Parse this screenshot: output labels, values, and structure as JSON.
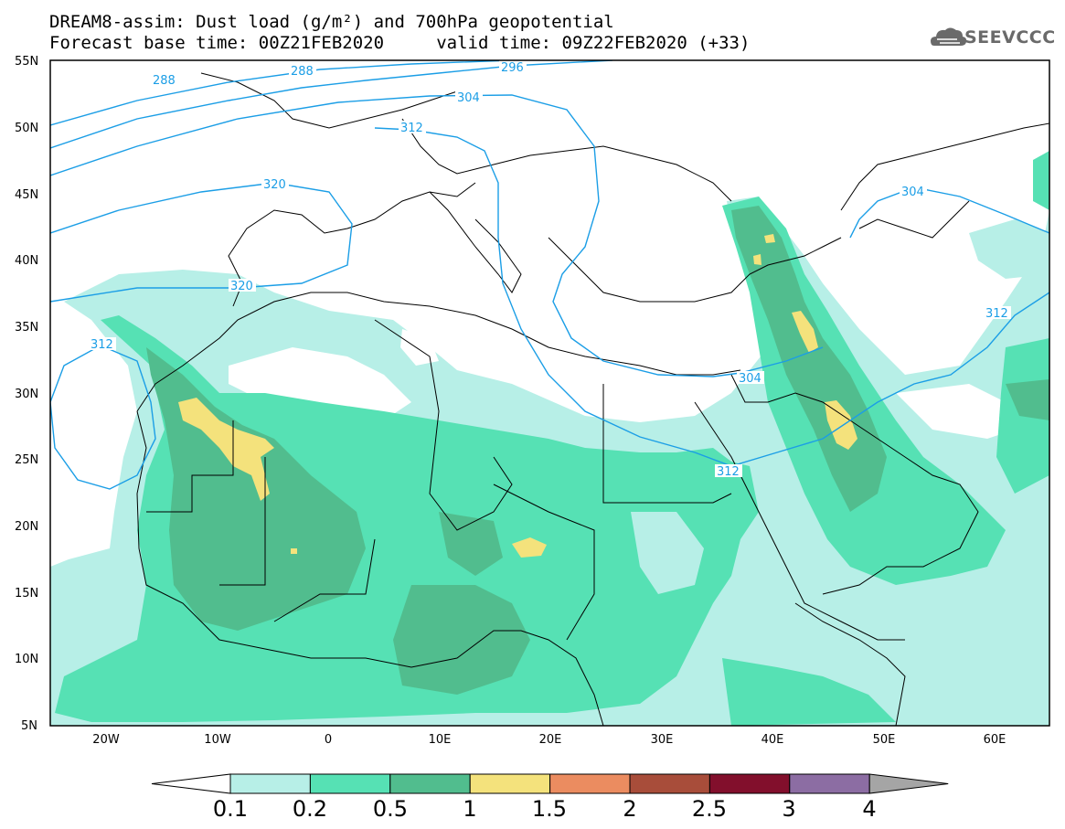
{
  "title": {
    "line1": "DREAM8-assim: Dust load (g/m²) and 700hPa geopotential",
    "line2": "Forecast base time: 00Z21FEB2020     valid time: 09Z22FEB2020 (+33)"
  },
  "logo": {
    "text": "SEEVCCC",
    "icon": "cloud-icon"
  },
  "lat_labels": [
    "55N",
    "50N",
    "45N",
    "40N",
    "35N",
    "30N",
    "25N",
    "20N",
    "15N",
    "10N",
    "5N"
  ],
  "lon_labels": [
    "20W",
    "10W",
    "0",
    "10E",
    "20E",
    "30E",
    "40E",
    "50E",
    "60E"
  ],
  "contour_labels": [
    "288",
    "288",
    "296",
    "304",
    "312",
    "320",
    "320",
    "312",
    "304",
    "312",
    "312",
    "304"
  ],
  "colorbar": {
    "levels": [
      "0.1",
      "0.2",
      "0.5",
      "1",
      "1.5",
      "2",
      "2.5",
      "3",
      "4"
    ],
    "colors": [
      "#ffffff",
      "#b7efe7",
      "#56e1b4",
      "#51bd8e",
      "#f4e27c",
      "#eb8c60",
      "#a84d3a",
      "#820f2c",
      "#8c6da3",
      "#a5a5a5"
    ]
  },
  "colors": {
    "contour": "#1b9ee6",
    "coast": "#000000",
    "dust_light": "#b7efe7",
    "dust_mid": "#56e1b4",
    "dust_dark": "#51bd8e",
    "dust_yellow": "#f4e27c"
  }
}
